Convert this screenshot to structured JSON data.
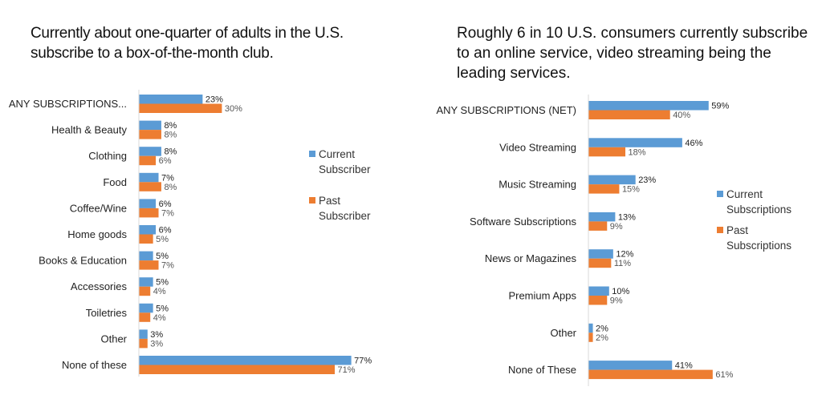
{
  "colors": {
    "current": "#5b9bd5",
    "past": "#ed7d31",
    "axis": "#d9d9d9"
  },
  "chart_data": [
    {
      "type": "bar",
      "orientation": "horizontal",
      "title": "Currently about one-quarter of adults in the U.S. subscribe to a box-of-the-month club.",
      "categories": [
        "ANY SUBSCRIPTIONS...",
        "Health & Beauty",
        "Clothing",
        "Food",
        "Coffee/Wine",
        "Home goods",
        "Books & Education",
        "Accessories",
        "Toiletries",
        "Other",
        "None of these"
      ],
      "series": [
        {
          "name": "Current Subscriber",
          "values": [
            23,
            8,
            8,
            7,
            6,
            6,
            5,
            5,
            5,
            3,
            77
          ],
          "labels": [
            "23%",
            "8%",
            "8%",
            "7%",
            "6%",
            "6%",
            "5%",
            "5%",
            "5%",
            "3%",
            "77%"
          ]
        },
        {
          "name": "Past Subscriber",
          "values": [
            30,
            8,
            6,
            8,
            7,
            5,
            7,
            4,
            4,
            3,
            71
          ],
          "labels": [
            "30%",
            "8%",
            "6%",
            "8%",
            "7%",
            "5%",
            "7%",
            "4%",
            "4%",
            "3%",
            "71%"
          ]
        }
      ],
      "legend": {
        "position": "right",
        "entries": [
          [
            "Current",
            "Subscriber"
          ],
          [
            "Past",
            "Subscriber"
          ]
        ]
      },
      "xlabel": "",
      "ylabel": "",
      "xlim": [
        0,
        80
      ],
      "grid": false,
      "unit": "%"
    },
    {
      "type": "bar",
      "orientation": "horizontal",
      "title": "Roughly 6 in 10 U.S. consumers currently subscribe to an online service, video streaming being the leading services.",
      "categories": [
        "ANY SUBSCRIPTIONS (NET)",
        "Video Streaming",
        "Music Streaming",
        "Software Subscriptions",
        "News or Magazines",
        "Premium Apps",
        "Other",
        "None of These"
      ],
      "series": [
        {
          "name": "Current Subscriptions",
          "values": [
            59,
            46,
            23,
            13,
            12,
            10,
            2,
            41
          ],
          "labels": [
            "59%",
            "46%",
            "23%",
            "13%",
            "12%",
            "10%",
            "2%",
            "41%"
          ]
        },
        {
          "name": "Past Subscriptions",
          "values": [
            40,
            18,
            15,
            9,
            11,
            9,
            2,
            61
          ],
          "labels": [
            "40%",
            "18%",
            "15%",
            "9%",
            "11%",
            "9%",
            "2%",
            "61%"
          ]
        }
      ],
      "legend": {
        "position": "right",
        "entries": [
          [
            "Current",
            "Subscriptions"
          ],
          [
            "Past",
            "Subscriptions"
          ]
        ]
      },
      "xlabel": "",
      "ylabel": "",
      "xlim": [
        0,
        65
      ],
      "grid": false,
      "unit": "%"
    }
  ]
}
